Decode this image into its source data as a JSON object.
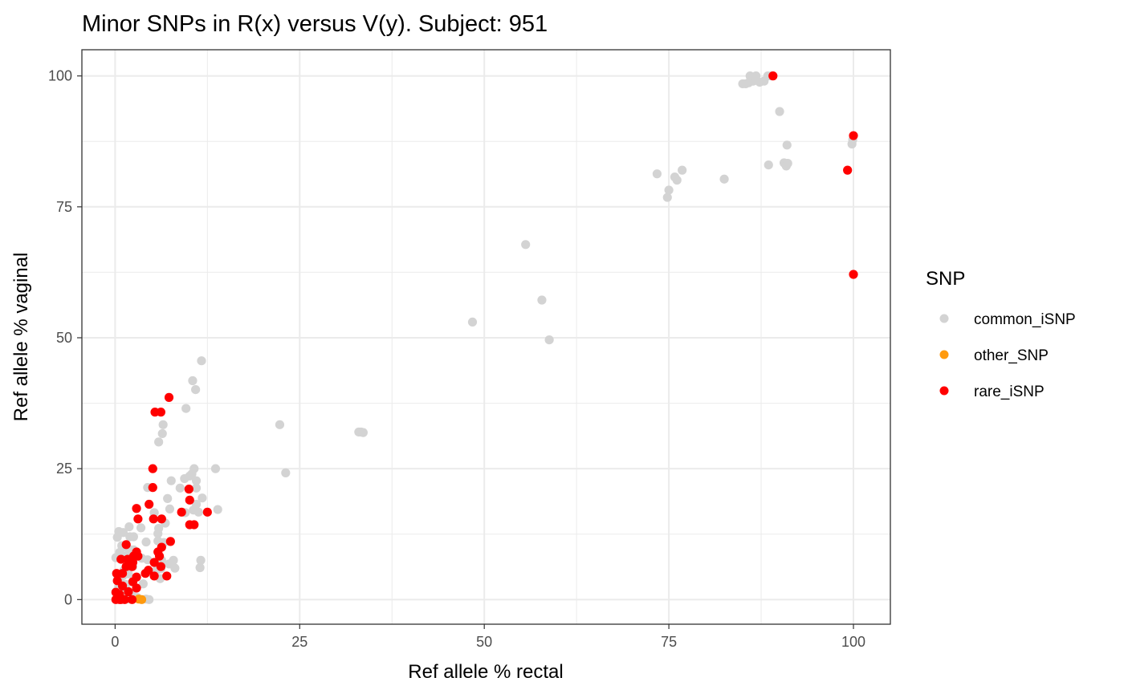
{
  "chart_data": {
    "type": "scatter",
    "title": "Minor SNPs in R(x) versus V(y). Subject: 951",
    "xlabel": "Ref allele % rectal",
    "ylabel": "Ref allele % vaginal",
    "xlim": [
      -4.5,
      105
    ],
    "ylim": [
      -4.7,
      105
    ],
    "xticks": [
      0,
      25,
      50,
      75,
      100
    ],
    "yticks": [
      0,
      25,
      50,
      75,
      100
    ],
    "grid": true,
    "legend": {
      "title": "SNP",
      "position": "right"
    },
    "series": [
      {
        "name": "common_iSNP",
        "color": "#d3d3d3",
        "points": [
          [
            85,
            98.5
          ],
          [
            85.4,
            98.5
          ],
          [
            86,
            100
          ],
          [
            86.4,
            99
          ],
          [
            86.8,
            100
          ],
          [
            87.3,
            98.8
          ],
          [
            87.9,
            99
          ],
          [
            88.4,
            100
          ],
          [
            88.9,
            100
          ],
          [
            85.8,
            98.7
          ],
          [
            90,
            93.2
          ],
          [
            91,
            86.8
          ],
          [
            88.5,
            83
          ],
          [
            90.6,
            83.4
          ],
          [
            90.9,
            82.8
          ],
          [
            91.1,
            83.3
          ],
          [
            99.8,
            87
          ],
          [
            99.9,
            87.8
          ],
          [
            73.4,
            81.3
          ],
          [
            75.8,
            80.7
          ],
          [
            76.1,
            80.1
          ],
          [
            76.8,
            82
          ],
          [
            82.5,
            80.3
          ],
          [
            75,
            78.2
          ],
          [
            74.8,
            76.8
          ],
          [
            55.6,
            67.8
          ],
          [
            57.8,
            57.2
          ],
          [
            58.8,
            49.6
          ],
          [
            48.4,
            53
          ],
          [
            22.3,
            33.4
          ],
          [
            23.1,
            24.2
          ],
          [
            33,
            32
          ],
          [
            33.3,
            32
          ],
          [
            33.6,
            31.9
          ],
          [
            11.7,
            45.6
          ],
          [
            10.5,
            41.8
          ],
          [
            10.9,
            40.1
          ],
          [
            9.6,
            36.5
          ],
          [
            6.5,
            33.4
          ],
          [
            6.4,
            31.7
          ],
          [
            5.9,
            30.1
          ],
          [
            10.7,
            25
          ],
          [
            10.4,
            24
          ],
          [
            9.4,
            23.1
          ],
          [
            10.1,
            23.6
          ],
          [
            11,
            22.7
          ],
          [
            7.6,
            22.7
          ],
          [
            13.6,
            25
          ],
          [
            8.8,
            21.3
          ],
          [
            4.4,
            21.4
          ],
          [
            11,
            21.3
          ],
          [
            7.1,
            19.3
          ],
          [
            11.8,
            19.4
          ],
          [
            11,
            18.2
          ],
          [
            10.6,
            17.1
          ],
          [
            11.3,
            16.7
          ],
          [
            13.9,
            17.2
          ],
          [
            9.5,
            16.6
          ],
          [
            7.4,
            17.3
          ],
          [
            5.3,
            16.6
          ],
          [
            6.3,
            15.4
          ],
          [
            6.8,
            14.6
          ],
          [
            5.9,
            13.6
          ],
          [
            5.8,
            12.6
          ],
          [
            3.5,
            13.7
          ],
          [
            1.9,
            13.9
          ],
          [
            0.5,
            13
          ],
          [
            1.1,
            12.8
          ],
          [
            0.3,
            11.9
          ],
          [
            2.5,
            12
          ],
          [
            4.2,
            11
          ],
          [
            5.8,
            11.2
          ],
          [
            6.6,
            10.9
          ],
          [
            0.9,
            10.3
          ],
          [
            1.5,
            10
          ],
          [
            1.9,
            9.6
          ],
          [
            2.5,
            9.5
          ],
          [
            0.6,
            9
          ],
          [
            0.8,
            8.6
          ],
          [
            1.4,
            8.3
          ],
          [
            0.1,
            8
          ],
          [
            3.6,
            7.9
          ],
          [
            4.4,
            7.6
          ],
          [
            6.3,
            7.5
          ],
          [
            7.3,
            6.8
          ],
          [
            7.9,
            7.5
          ],
          [
            8.1,
            6
          ],
          [
            11.6,
            7.5
          ],
          [
            11.5,
            6.1
          ],
          [
            6.2,
            5.9
          ],
          [
            5.6,
            5.6
          ],
          [
            2.4,
            6.3
          ],
          [
            1.2,
            5.6
          ],
          [
            0.3,
            4.7
          ],
          [
            0.6,
            4.3
          ],
          [
            1.1,
            4.6
          ],
          [
            1.8,
            4.9
          ],
          [
            0.4,
            3.6
          ],
          [
            0.9,
            3.1
          ],
          [
            1.5,
            2.9
          ],
          [
            3.8,
            3
          ],
          [
            6.1,
            4
          ],
          [
            0.5,
            2.5
          ],
          [
            1.3,
            1.8
          ],
          [
            0.2,
            1.6
          ],
          [
            1.6,
            0.5
          ],
          [
            2.3,
            0.8
          ],
          [
            3,
            0.4
          ],
          [
            1.9,
            0.1
          ],
          [
            0.4,
            0.4
          ],
          [
            4.2,
            0.1
          ],
          [
            4.6,
            0
          ],
          [
            2,
            12
          ]
        ]
      },
      {
        "name": "other_SNP",
        "color": "#ff9a0e",
        "points": [
          [
            3.2,
            0.1
          ],
          [
            3.6,
            0
          ]
        ]
      },
      {
        "name": "rare_iSNP",
        "color": "#ff0000",
        "points": [
          [
            89.1,
            100
          ],
          [
            100,
            88.6
          ],
          [
            99.2,
            82
          ],
          [
            100,
            62.1
          ],
          [
            7.3,
            38.6
          ],
          [
            5.4,
            35.8
          ],
          [
            6.2,
            35.8
          ],
          [
            5.1,
            25
          ],
          [
            10,
            21.1
          ],
          [
            5.1,
            21.4
          ],
          [
            10.1,
            19
          ],
          [
            4.6,
            18.2
          ],
          [
            2.9,
            17.4
          ],
          [
            9,
            16.7
          ],
          [
            12.5,
            16.7
          ],
          [
            3.1,
            15.4
          ],
          [
            5.2,
            15.4
          ],
          [
            6.3,
            15.4
          ],
          [
            10.1,
            14.3
          ],
          [
            10.7,
            14.3
          ],
          [
            7.5,
            11.1
          ],
          [
            1.5,
            10.5
          ],
          [
            6.3,
            10
          ],
          [
            2.9,
            9.1
          ],
          [
            5.8,
            9.1
          ],
          [
            2.5,
            8.3
          ],
          [
            3.1,
            8.3
          ],
          [
            6,
            8.3
          ],
          [
            0.8,
            7.7
          ],
          [
            1.7,
            7.7
          ],
          [
            2.4,
            7.1
          ],
          [
            5.3,
            7.1
          ],
          [
            1.5,
            6.3
          ],
          [
            2.3,
            6.3
          ],
          [
            6.2,
            6.3
          ],
          [
            4.5,
            5.6
          ],
          [
            0.2,
            5
          ],
          [
            1,
            5
          ],
          [
            4.1,
            5
          ],
          [
            5.3,
            4.5
          ],
          [
            7,
            4.5
          ],
          [
            2.9,
            4.3
          ],
          [
            0.3,
            3.6
          ],
          [
            2.4,
            3.4
          ],
          [
            1,
            2.6
          ],
          [
            2.9,
            2.2
          ],
          [
            0.1,
            1.4
          ],
          [
            0.6,
            1
          ],
          [
            1.8,
            1.5
          ],
          [
            0.1,
            0
          ],
          [
            0.6,
            0
          ],
          [
            0.8,
            0
          ],
          [
            1.3,
            0
          ],
          [
            2.3,
            0
          ]
        ]
      }
    ]
  }
}
